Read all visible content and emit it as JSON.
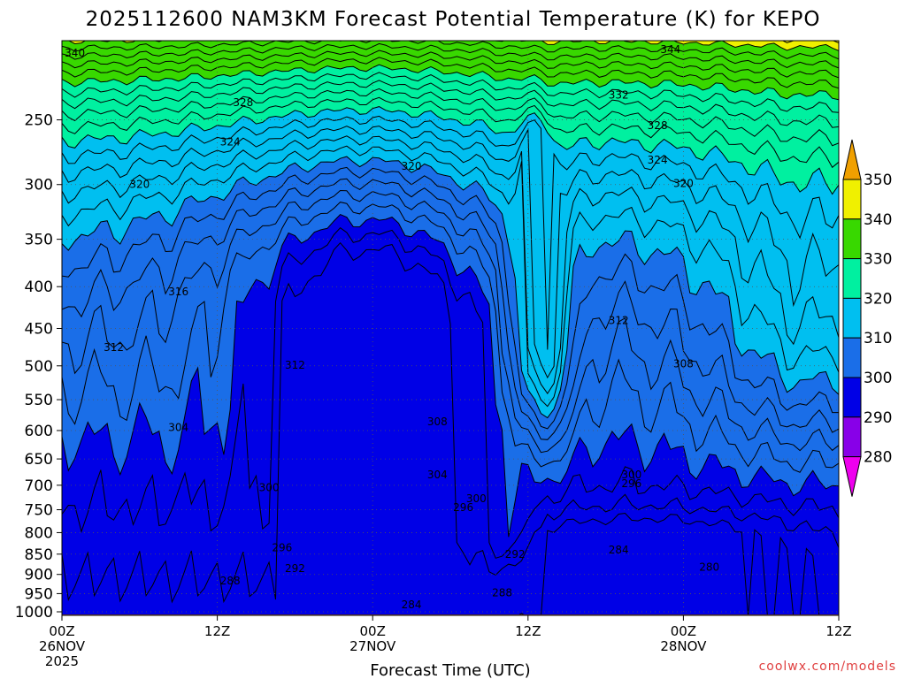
{
  "chart_data": {
    "type": "heatmap",
    "title": "2025112600 NAM3KM Forecast Potential Temperature (K) for KEPO",
    "xlabel": "Forecast Time (UTC)",
    "ylabel": "",
    "x_ticks": [
      {
        "label": "00Z",
        "sub": "26NOV",
        "sub2": "2025",
        "hour": 0
      },
      {
        "label": "12Z",
        "sub": "",
        "sub2": "",
        "hour": 12
      },
      {
        "label": "00Z",
        "sub": "27NOV",
        "sub2": "",
        "hour": 24
      },
      {
        "label": "12Z",
        "sub": "",
        "sub2": "",
        "hour": 36
      },
      {
        "label": "00Z",
        "sub": "28NOV",
        "sub2": "",
        "hour": 48
      },
      {
        "label": "12Z",
        "sub": "",
        "sub2": "",
        "hour": 60
      }
    ],
    "y_ticks": [
      250,
      300,
      350,
      400,
      450,
      500,
      550,
      600,
      650,
      700,
      750,
      800,
      850,
      900,
      950,
      1000
    ],
    "y_range_hpa": [
      200,
      1010
    ],
    "x_range_hours": [
      0,
      60
    ],
    "colorbar": {
      "levels": [
        280,
        290,
        300,
        310,
        320,
        330,
        340,
        350
      ],
      "labels": [
        "280",
        "290",
        "300",
        "310",
        "320",
        "330",
        "340",
        "350"
      ],
      "colors": [
        "#ee00ee",
        "#8800e8",
        "#0000e6",
        "#1a6ee8",
        "#00bff0",
        "#00f0a0",
        "#38d800",
        "#f0f000",
        "#f0a000"
      ]
    },
    "contour_labels": [
      {
        "text": "340",
        "hour": 1.0,
        "p": 207
      },
      {
        "text": "344",
        "hour": 47.0,
        "p": 205
      },
      {
        "text": "328",
        "hour": 14.0,
        "p": 238
      },
      {
        "text": "332",
        "hour": 43.0,
        "p": 233
      },
      {
        "text": "324",
        "hour": 13.0,
        "p": 266
      },
      {
        "text": "328",
        "hour": 46.0,
        "p": 254
      },
      {
        "text": "324",
        "hour": 46.0,
        "p": 280
      },
      {
        "text": "320",
        "hour": 6.0,
        "p": 300
      },
      {
        "text": "320",
        "hour": 27.0,
        "p": 285
      },
      {
        "text": "320",
        "hour": 48.0,
        "p": 299
      },
      {
        "text": "316",
        "hour": 9.0,
        "p": 406
      },
      {
        "text": "312",
        "hour": 4.0,
        "p": 475
      },
      {
        "text": "312",
        "hour": 18.0,
        "p": 499
      },
      {
        "text": "312",
        "hour": 43.0,
        "p": 440
      },
      {
        "text": "308",
        "hour": 48.0,
        "p": 497
      },
      {
        "text": "304",
        "hour": 9.0,
        "p": 595
      },
      {
        "text": "308",
        "hour": 29.0,
        "p": 585
      },
      {
        "text": "304",
        "hour": 29.0,
        "p": 680
      },
      {
        "text": "300",
        "hour": 16.0,
        "p": 705
      },
      {
        "text": "300",
        "hour": 32.0,
        "p": 727
      },
      {
        "text": "300",
        "hour": 44.0,
        "p": 680
      },
      {
        "text": "296",
        "hour": 31.0,
        "p": 745
      },
      {
        "text": "296",
        "hour": 44.0,
        "p": 697
      },
      {
        "text": "296",
        "hour": 17.0,
        "p": 835
      },
      {
        "text": "292",
        "hour": 18.0,
        "p": 885
      },
      {
        "text": "292",
        "hour": 35.0,
        "p": 850
      },
      {
        "text": "284",
        "hour": 43.0,
        "p": 840
      },
      {
        "text": "280",
        "hour": 50.0,
        "p": 882
      },
      {
        "text": "288",
        "hour": 13.0,
        "p": 916
      },
      {
        "text": "288",
        "hour": 34.0,
        "p": 948
      },
      {
        "text": "284",
        "hour": 27.0,
        "p": 980
      }
    ],
    "ground_color": "#a0522d",
    "grid": true
  },
  "credit": "coolwx.com/models"
}
